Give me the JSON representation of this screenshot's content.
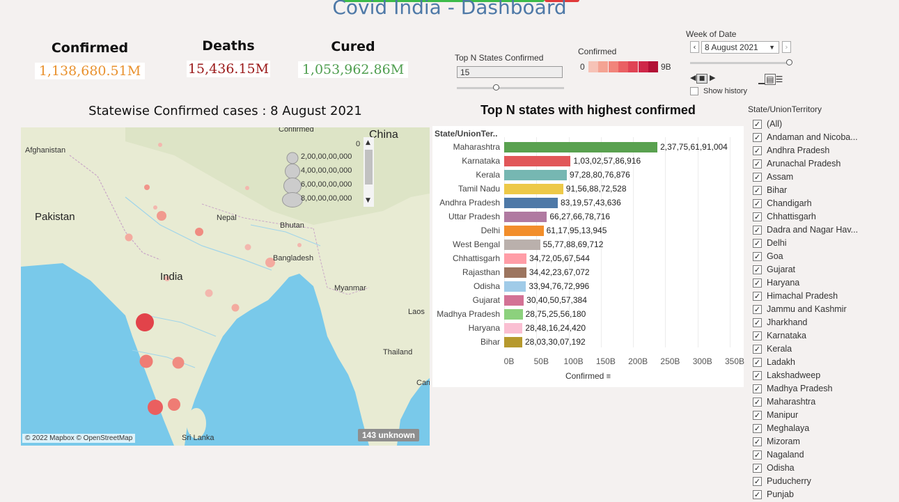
{
  "title": "Covid India - Dashboard",
  "kpis": [
    {
      "label": "Confirmed",
      "value": "1,138,680.51M",
      "color": "#e9912d"
    },
    {
      "label": "Deaths",
      "value": "15,436.15M",
      "color": "#9b1a1a"
    },
    {
      "label": "Cured",
      "value": "1,053,962.86M",
      "color": "#4f9e4f"
    }
  ],
  "topn": {
    "label": "Top N States Confirmed",
    "value": "15"
  },
  "legend": {
    "label": "Confirmed",
    "min": "0",
    "max": "9B",
    "colors": [
      "#f6c2b6",
      "#f4a393",
      "#f1847a",
      "#ea6063",
      "#e04354",
      "#cf2748",
      "#b21035"
    ]
  },
  "week": {
    "label": "Week of Date",
    "value": "8 August 2021",
    "show_history": "Show history"
  },
  "map": {
    "title": "Statewise Confirmed cases  : 8 August 2021",
    "size_legend_title": "Confirmed",
    "size_legend": [
      "0",
      "2,00,00,00,000",
      "4,00,00,00,000",
      "6,00,00,00,000",
      "8,00,00,00,000"
    ],
    "labels": {
      "afghanistan": "Afghanistan",
      "pakistan": "Pakistan",
      "china": "China",
      "nepal": "Nepal",
      "bhutan": "Bhutan",
      "bangladesh": "Bangladesh",
      "india": "India",
      "myanmar": "Myanmar",
      "laos": "Laos",
      "thailand": "Thailand",
      "cam": "Cam",
      "srilanka": "Sri Lanka"
    },
    "attribution": "© 2022 Mapbox © OpenStreetMap",
    "unknown": "143 unknown"
  },
  "bars": {
    "title": "Top N states with highest confirmed",
    "axis_header": "State/UnionTer..",
    "x_title": "Confirmed"
  },
  "chart_data": {
    "type": "bar",
    "orientation": "horizontal",
    "title": "Top N states with highest confirmed",
    "xlabel": "Confirmed",
    "ylabel": "State/UnionTer..",
    "xlim": [
      0,
      350000000000
    ],
    "x_ticks": [
      "0B",
      "50B",
      "100B",
      "150B",
      "200B",
      "250B",
      "300B",
      "350B"
    ],
    "categories": [
      "Maharashtra",
      "Karnataka",
      "Kerala",
      "Tamil Nadu",
      "Andhra Pradesh",
      "Uttar Pradesh",
      "Delhi",
      "West Bengal",
      "Chhattisgarh",
      "Rajasthan",
      "Odisha",
      "Gujarat",
      "Madhya Pradesh",
      "Haryana",
      "Bihar"
    ],
    "values": [
      237756191004,
      103025786916,
      97288076876,
      91568872528,
      83195743636,
      66276678716,
      61179513945,
      55778869712,
      34720567544,
      34422367072,
      33947672996,
      30405057384,
      28752556180,
      28481624420,
      28033007192
    ],
    "value_labels": [
      "2,37,75,61,91,004",
      "1,03,02,57,86,916",
      "97,28,80,76,876",
      "91,56,88,72,528",
      "83,19,57,43,636",
      "66,27,66,78,716",
      "61,17,95,13,945",
      "55,77,88,69,712",
      "34,72,05,67,544",
      "34,42,23,67,072",
      "33,94,76,72,996",
      "30,40,50,57,384",
      "28,75,25,56,180",
      "28,48,16,24,420",
      "28,03,30,07,192"
    ],
    "colors": [
      "#59a14f",
      "#e15759",
      "#76b7b2",
      "#edc948",
      "#4e79a7",
      "#b07aa1",
      "#f28e2b",
      "#bab0ac",
      "#ff9da7",
      "#9c755f",
      "#a0cbe8",
      "#d37295",
      "#8cd17d",
      "#fabfd2",
      "#b6992d"
    ],
    "grid": true
  },
  "filter": {
    "title": "State/UnionTerritory",
    "items": [
      "(All)",
      "Andaman and Nicoba...",
      "Andhra Pradesh",
      "Arunachal Pradesh",
      "Assam",
      "Bihar",
      "Chandigarh",
      "Chhattisgarh",
      "Dadra and Nagar Hav...",
      "Delhi",
      "Goa",
      "Gujarat",
      "Haryana",
      "Himachal Pradesh",
      "Jammu and Kashmir",
      "Jharkhand",
      "Karnataka",
      "Kerala",
      "Ladakh",
      "Lakshadweep",
      "Madhya Pradesh",
      "Maharashtra",
      "Manipur",
      "Meghalaya",
      "Mizoram",
      "Nagaland",
      "Odisha",
      "Puducherry",
      "Punjab"
    ]
  }
}
